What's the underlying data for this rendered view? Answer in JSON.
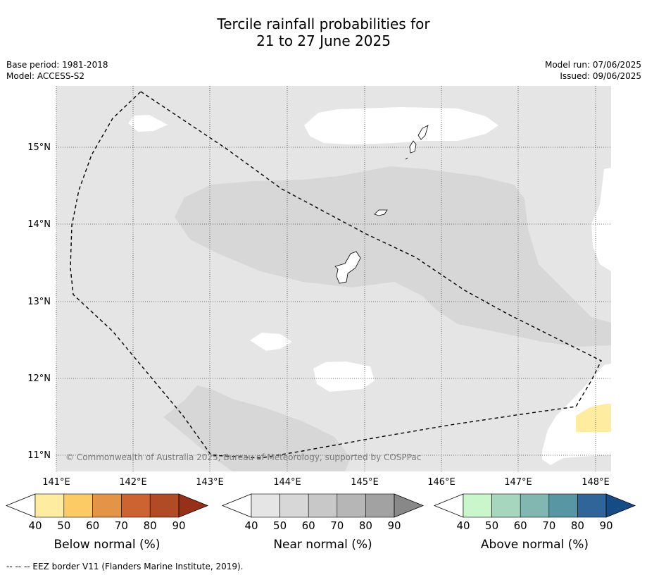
{
  "title": {
    "line1": "Tercile rainfall probabilities for",
    "line2": "21 to 27 June 2025"
  },
  "meta": {
    "base_period": "Base period: 1981-2018",
    "model": "Model: ACCESS-S2",
    "model_run": "Model run: 07/06/2025",
    "issued": "Issued: 09/06/2025"
  },
  "map": {
    "lon_ticks": [
      "141°E",
      "142°E",
      "143°E",
      "144°E",
      "145°E",
      "146°E",
      "147°E",
      "148°E"
    ],
    "lat_ticks": [
      "15°N",
      "14°N",
      "13°N",
      "12°N",
      "11°N"
    ],
    "copyright": "© Commonwealth of Australia 2025, Bureau of Meteorology, supported by COSPPac",
    "background_category": "Near normal 40-50%",
    "colors": {
      "near_40": "#e5e5e5",
      "near_50": "#d7d7d7",
      "below_40": "#feeda0",
      "ocean_white": "#ffffff",
      "eez_border": "#000000"
    }
  },
  "colorbars": [
    {
      "label": "Below normal (%)",
      "ticks": [
        "40",
        "50",
        "60",
        "70",
        "80",
        "90"
      ],
      "colors": [
        "#feeda0",
        "#fdcb66",
        "#e39447",
        "#cd6330",
        "#b04b25",
        "#963019"
      ]
    },
    {
      "label": "Near normal (%)",
      "ticks": [
        "40",
        "50",
        "60",
        "70",
        "80",
        "90"
      ],
      "colors": [
        "#e5e5e5",
        "#d7d7d7",
        "#c8c8c8",
        "#b6b6b6",
        "#a2a2a2",
        "#888888"
      ]
    },
    {
      "label": "Above normal (%)",
      "ticks": [
        "40",
        "50",
        "60",
        "70",
        "80",
        "90"
      ],
      "colors": [
        "#c9f6cb",
        "#a6d6bd",
        "#82b6b1",
        "#5996a4",
        "#30659a",
        "#164c86"
      ]
    }
  ],
  "footnote": "--  --  -- EEZ border V11 (Flanders Marine Institute, 2019)."
}
